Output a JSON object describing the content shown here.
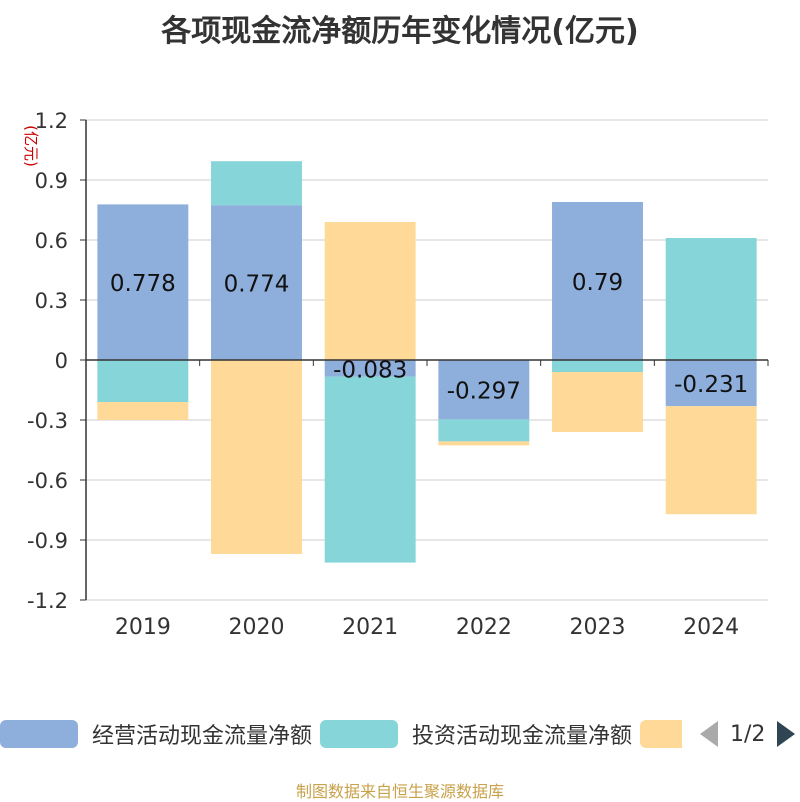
{
  "title": "各项现金流净额历年变化情况(亿元)",
  "unit_label": "(亿元)",
  "source": "制图数据来自恒生聚源数据库",
  "legend": {
    "pager": "1/2"
  },
  "chart_data": {
    "type": "bar",
    "stacked": true,
    "categories": [
      "2019",
      "2020",
      "2021",
      "2022",
      "2023",
      "2024"
    ],
    "ylim": [
      -1.2,
      1.2
    ],
    "yticks": [
      "1.2",
      "0.9",
      "0.6",
      "0.3",
      "0",
      "-0.3",
      "-0.6",
      "-0.9",
      "-1.2"
    ],
    "grid": true,
    "legend_position": "bottom",
    "series": [
      {
        "name": "经营活动现金流量净额",
        "color": "#8eaedb",
        "values": [
          0.778,
          0.774,
          -0.083,
          -0.297,
          0.79,
          -0.231
        ],
        "labels": [
          "0.778",
          "0.774",
          "-0.083",
          "-0.297",
          "0.79",
          "-0.231"
        ]
      },
      {
        "name": "投资活动现金流量净额",
        "color": "#86d5d8",
        "values": [
          -0.21,
          0.22,
          -0.93,
          -0.11,
          -0.06,
          0.61
        ]
      },
      {
        "color": "#ffd998",
        "values": [
          -0.09,
          -0.97,
          0.69,
          -0.02,
          -0.3,
          -0.54
        ]
      }
    ]
  }
}
